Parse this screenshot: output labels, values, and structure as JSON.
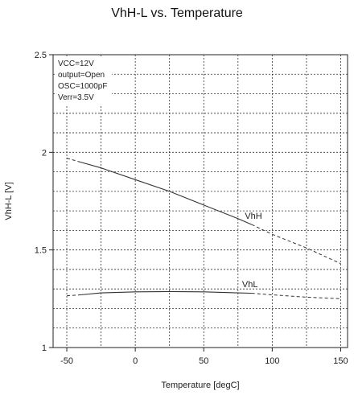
{
  "chart_data": {
    "type": "line",
    "title": "VhH-L vs. Temperature",
    "xlabel": "Temperature [degC]",
    "ylabel": "VhH-L [V]",
    "xlim": [
      -60,
      155
    ],
    "ylim": [
      1.0,
      2.5
    ],
    "xticks": [
      -50,
      0,
      50,
      100,
      150
    ],
    "xtick_labels": [
      "-50",
      "0",
      "50",
      "100",
      "150"
    ],
    "yticks": [
      1.0,
      1.5,
      2.0,
      2.5
    ],
    "ytick_labels": [
      "1",
      "1.5",
      "2",
      "2.5"
    ],
    "x_minor_gridlines": [
      -50,
      -25,
      0,
      25,
      50,
      75,
      100,
      125,
      150
    ],
    "y_minor_gridlines": [
      1.1,
      1.2,
      1.3,
      1.4,
      1.5,
      1.6,
      1.7,
      1.8,
      1.9,
      2.0,
      2.1,
      2.2,
      2.3,
      2.4
    ],
    "grid": true,
    "conditions": [
      "VCC=12V",
      "output=Open",
      "OSC=1000pF",
      "Verr=3.5V"
    ],
    "series": [
      {
        "name": "VhH",
        "label_at": [
          80,
          1.66
        ],
        "solid": {
          "x": [
            -40,
            -25,
            0,
            25,
            50,
            75,
            85
          ],
          "y": [
            1.95,
            1.92,
            1.86,
            1.8,
            1.73,
            1.66,
            1.63
          ]
        },
        "dashed": [
          {
            "x": [
              -50,
              -40
            ],
            "y": [
              1.97,
              1.95
            ]
          },
          {
            "x": [
              85,
              100,
              125,
              150
            ],
            "y": [
              1.63,
              1.58,
              1.51,
              1.43
            ]
          }
        ]
      },
      {
        "name": "VhL",
        "label_at": [
          78,
          1.31
        ],
        "solid": {
          "x": [
            -40,
            -25,
            0,
            25,
            50,
            75,
            85
          ],
          "y": [
            1.27,
            1.28,
            1.285,
            1.287,
            1.285,
            1.28,
            1.278
          ]
        },
        "dashed": [
          {
            "x": [
              -50,
              -40
            ],
            "y": [
              1.265,
              1.27
            ]
          },
          {
            "x": [
              85,
              100,
              125,
              150
            ],
            "y": [
              1.278,
              1.27,
              1.258,
              1.25
            ]
          }
        ]
      }
    ]
  }
}
